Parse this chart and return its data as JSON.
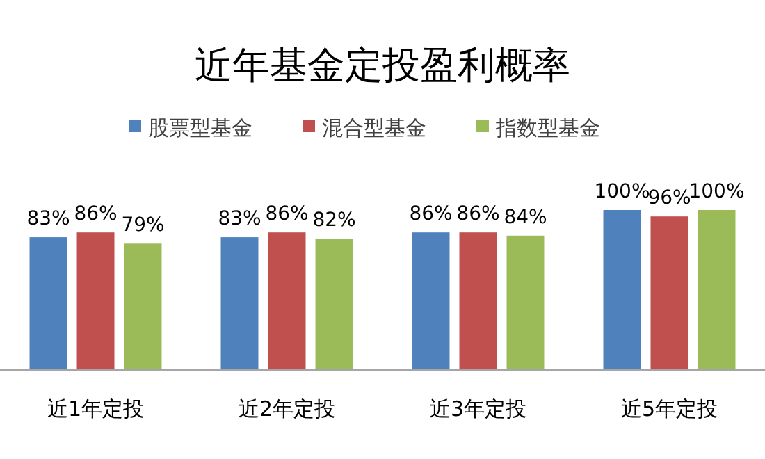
{
  "chart_data": {
    "type": "bar",
    "title": "近年基金定投盈利概率",
    "categories": [
      "近1年定投",
      "近2年定投",
      "近3年定投",
      "近5年定投"
    ],
    "series": [
      {
        "name": "股票型基金",
        "color": "#4f81bd",
        "values": [
          83,
          83,
          86,
          100
        ],
        "value_labels": [
          "83%",
          "83%",
          "86%",
          "100%"
        ]
      },
      {
        "name": "混合型基金",
        "color": "#c0504d",
        "values": [
          86,
          86,
          86,
          96
        ],
        "value_labels": [
          "86%",
          "86%",
          "86%",
          "96%"
        ]
      },
      {
        "name": "指数型基金",
        "color": "#9bbb59",
        "values": [
          79,
          82,
          84,
          100
        ],
        "value_labels": [
          "79%",
          "82%",
          "84%",
          "100%"
        ]
      }
    ],
    "legend": "top",
    "grid": false
  }
}
